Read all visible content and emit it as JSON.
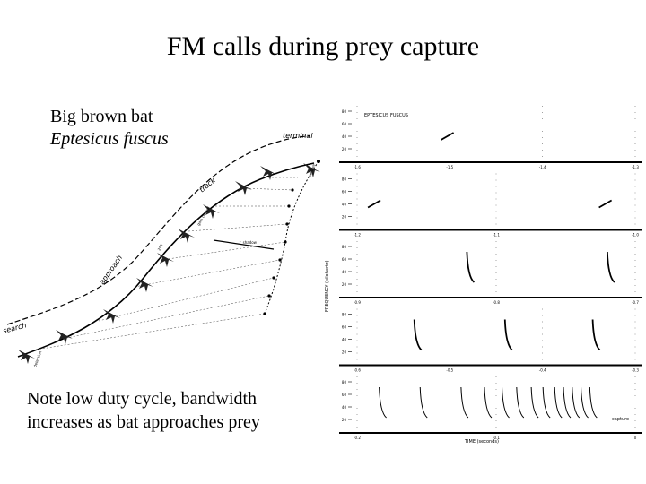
{
  "title": "FM calls during prey capture",
  "caption": {
    "common_name": "Big brown bat",
    "species": "Eptesicus fuscus",
    "note": "Note low duty cycle, bandwidth increases as bat approaches prey"
  },
  "flight_diagram": {
    "phase_labels": [
      "search",
      "approach",
      "track",
      "terminal"
    ],
    "other_labels": [
      "detection",
      "capture"
    ],
    "annotations": [
      "200",
      "gain control",
      "↑ shadow"
    ]
  },
  "sonogram": {
    "species_label": "EPTESICUS FUSCUS",
    "ylabel": "FREQUENCY (kilohertz)",
    "xlabel": "TIME (seconds)",
    "capture_label": "capture",
    "panels": [
      {
        "y_ticks": [
          "80",
          "60",
          "40",
          "20"
        ],
        "x_ticks": [
          "-1.6",
          "-1.5",
          "-1.4",
          "-1.3"
        ]
      },
      {
        "y_ticks": [
          "80",
          "60",
          "40",
          "20"
        ],
        "x_ticks": [
          "-1.2",
          "-1.1",
          "-1.0"
        ]
      },
      {
        "y_ticks": [
          "80",
          "60",
          "40",
          "20"
        ],
        "x_ticks": [
          "-0.9",
          "-0.8",
          "-0.7"
        ]
      },
      {
        "y_ticks": [
          "80",
          "60",
          "40",
          "20"
        ],
        "x_ticks": [
          "-0.6",
          "-0.5",
          "-0.4",
          "-0.3"
        ]
      },
      {
        "y_ticks": [
          "80",
          "60",
          "40",
          "20"
        ],
        "x_ticks": [
          "-0.2",
          "-0.1",
          "0"
        ]
      }
    ]
  }
}
